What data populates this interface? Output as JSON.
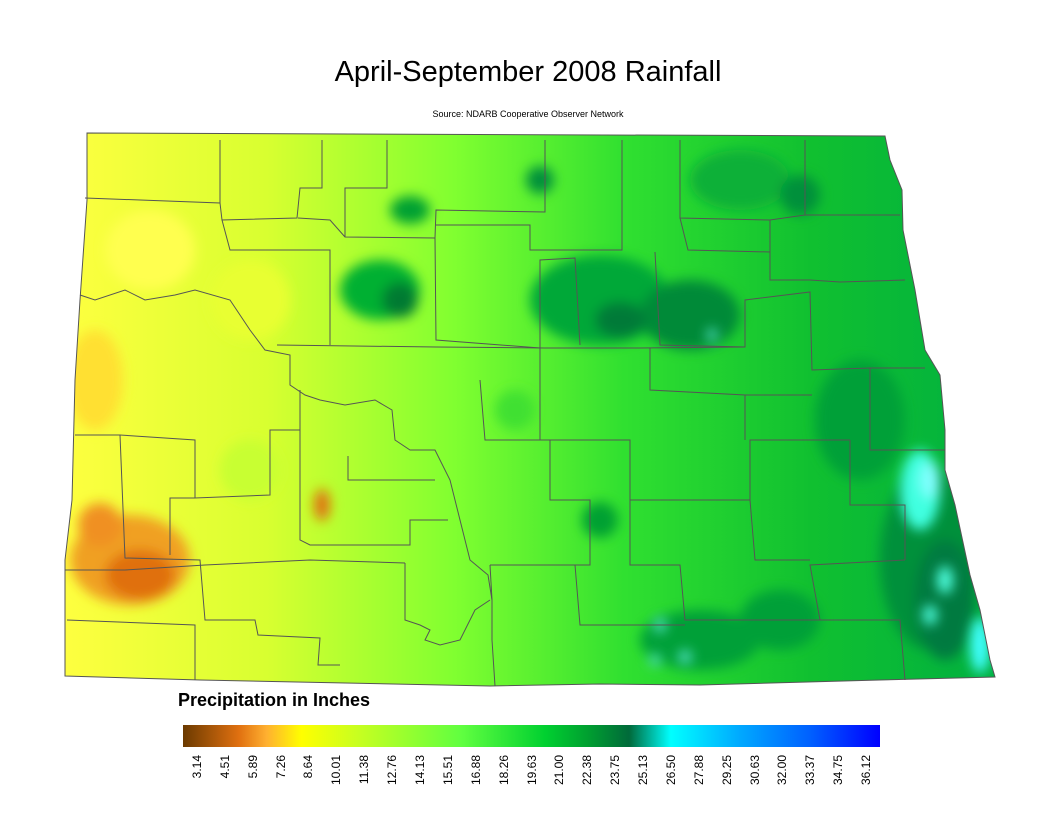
{
  "title": "April-September 2008 Rainfall",
  "source": "Source: NDARB Cooperative Observer Network",
  "legend": {
    "title": "Precipitation in Inches",
    "ticks": [
      "3.14",
      "4.51",
      "5.89",
      "7.26",
      "8.64",
      "10.01",
      "11.38",
      "12.76",
      "14.13",
      "15.51",
      "16.88",
      "18.26",
      "19.63",
      "21.00",
      "22.38",
      "23.75",
      "25.13",
      "26.50",
      "27.88",
      "29.25",
      "30.63",
      "32.00",
      "33.37",
      "34.75",
      "36.12"
    ]
  },
  "colors": {
    "low_brown": "#6b3a00",
    "orange": "#e07010",
    "yellow": "#ffff00",
    "light_green": "#60ff40",
    "green": "#00d030",
    "dark_green": "#006a3a",
    "cyan": "#00ffff",
    "blue": "#0000ff",
    "county_line": "#555555"
  }
}
